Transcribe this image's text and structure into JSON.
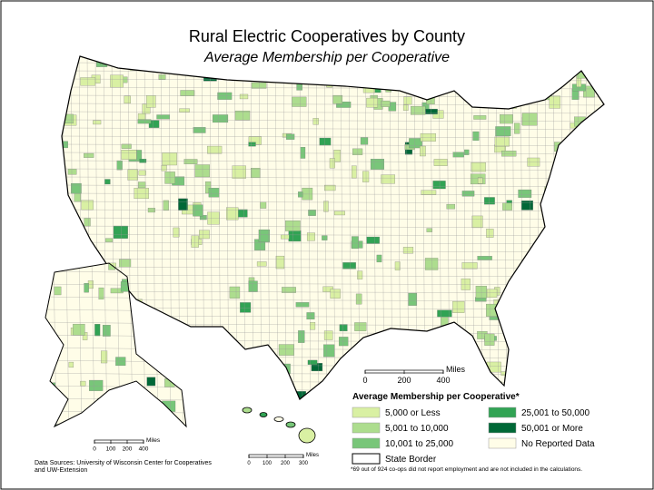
{
  "header": {
    "title": "Rural Electric Cooperatives by County",
    "subtitle": "Average Membership per Cooperative"
  },
  "main_scale": {
    "unit": "Miles",
    "labels": [
      "0",
      "200",
      "400"
    ]
  },
  "alaska_scale": {
    "unit": "Miles",
    "labels": [
      "0",
      "100",
      "200",
      "400"
    ]
  },
  "hawaii_scale": {
    "unit": "Miles",
    "labels": [
      "0",
      "100",
      "200",
      "300"
    ]
  },
  "legend": {
    "title": "Average Membership per Cooperative*",
    "items": [
      {
        "label": "5,000 or Less",
        "color": "#d9f0a3"
      },
      {
        "label": "5,001 to 10,000",
        "color": "#addd8e"
      },
      {
        "label": "10,001 to 25,000",
        "color": "#78c679"
      },
      {
        "label": "State Border",
        "color": "#ffffff"
      },
      {
        "label": "25,001 to 50,000",
        "color": "#31a354"
      },
      {
        "label": "50,001 or More",
        "color": "#006837"
      },
      {
        "label": "No Reported Data",
        "color": "#fffde8"
      }
    ]
  },
  "footnote": "*69 out of 924 co-ops did not report employment and are not included in the calculations.",
  "sources": [
    "Data Sources: University of Wisconsin Center for Cooperatives",
    "and UW-Extension"
  ]
}
